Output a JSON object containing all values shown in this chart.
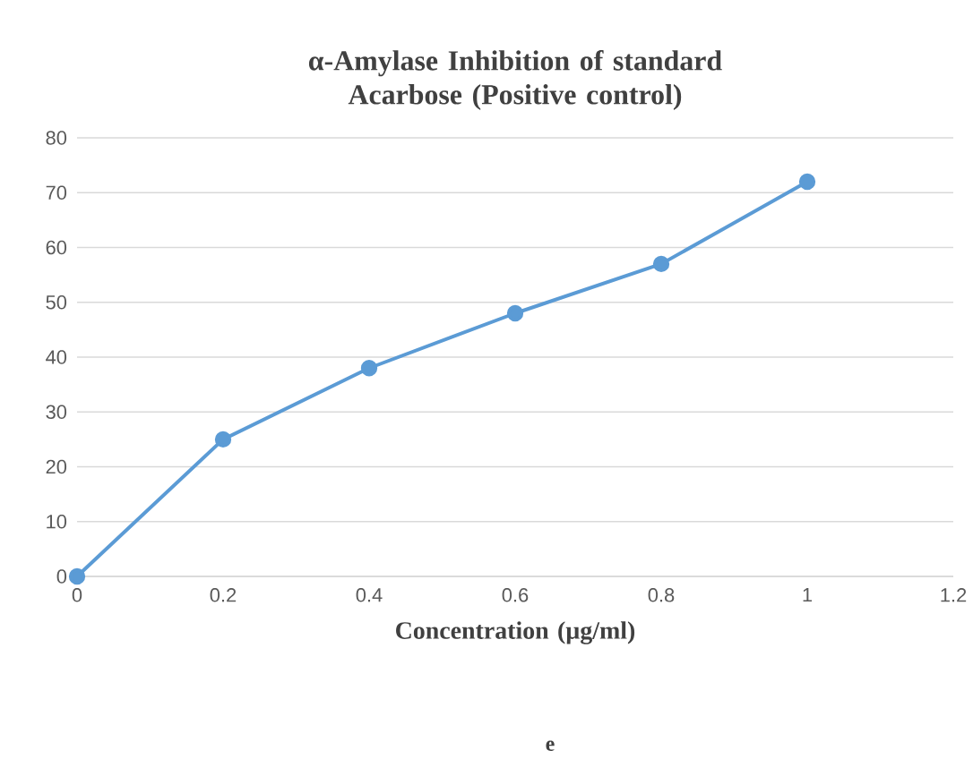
{
  "chart_data": {
    "type": "line",
    "title": "α-Amylase Inhibition of standard Acarbose (Positive control)",
    "xlabel": "Concentration (µg/ml)",
    "x": [
      0,
      0.2,
      0.4,
      0.6,
      0.8,
      1
    ],
    "series": [
      {
        "color": "#5b9bd5",
        "values": [
          0,
          25,
          38,
          48,
          57,
          72
        ]
      }
    ],
    "xlim": [
      0,
      1.2
    ],
    "xticks": [
      0,
      0.2,
      0.4,
      0.6,
      0.8,
      1,
      1.2
    ],
    "ylim": [
      0,
      80
    ],
    "yticks": [
      0,
      10,
      20,
      30,
      40,
      50,
      60,
      70,
      80
    ],
    "grid": "y",
    "marker": "circle",
    "line_style": "solid",
    "annotations": [
      "e"
    ]
  }
}
